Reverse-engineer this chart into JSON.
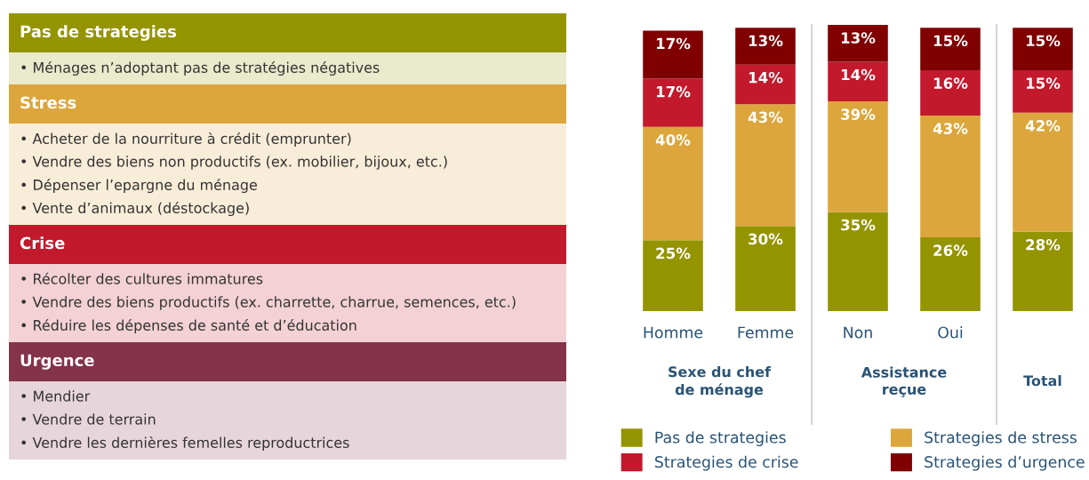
{
  "chart_data": [
    {
      "type": "other",
      "title": "Pas de strategies",
      "color": "#949400",
      "annotations": [
        "• Ménages n’adoptant pas de stratégies négatives"
      ]
    },
    {
      "type": "other",
      "title": "Stress",
      "color": "#dca63c",
      "annotations": [
        "• Acheter de la nourriture à crédit (emprunter)",
        "• Vendre des biens non productifs (ex. mobilier, bijoux, etc.)",
        "• Dépenser l’epargne du ménage",
        "• Vente d’animaux (déstockage)"
      ]
    },
    {
      "type": "other",
      "title": "Crise",
      "color": "#c3192d",
      "annotations": [
        "• Récolter des cultures immatures",
        "• Vendre des biens productifs (ex. charrette, charrue, semences, etc.)",
        "• Réduire les dépenses de santé et d’éducation"
      ]
    },
    {
      "type": "other",
      "title": "Urgence",
      "color": "#84334b",
      "annotations": [
        "• Mendier",
        "• Vendre de terrain",
        "• Vendre les dernières femelles reproductrices"
      ]
    },
    {
      "type": "bar",
      "stacked": true,
      "legend": "bottom",
      "categories": [
        "Homme",
        "Femme",
        "Non",
        "Oui",
        null
      ],
      "annotations": [
        "Sexe du chef\nde ménage",
        "Assistance\nreçue",
        "Total"
      ],
      "series": [
        {
          "name": "Pas de strategies",
          "color": "#949400",
          "values": [
            25,
            30,
            35,
            26,
            28
          ],
          "value_labels": [
            "25%",
            "30%",
            "35%",
            "26%",
            "28%"
          ]
        },
        {
          "name": "Strategies de stress",
          "color": "#dca63c",
          "values": [
            40,
            43,
            39,
            43,
            42
          ],
          "value_labels": [
            "40%",
            "43%",
            "39%",
            "43%",
            "42%"
          ]
        },
        {
          "name": "Strategies de crise",
          "color": "#c3192d",
          "values": [
            17,
            14,
            14,
            16,
            15
          ],
          "value_labels": [
            "17%",
            "14%",
            "14%",
            "16%",
            "15%"
          ]
        },
        {
          "name": "Strategies d’urgence",
          "color": "#800000",
          "values": [
            17,
            13,
            13,
            15,
            15
          ],
          "value_labels": [
            "17%",
            "13%",
            "13%",
            "15%",
            "15%"
          ]
        }
      ]
    }
  ]
}
